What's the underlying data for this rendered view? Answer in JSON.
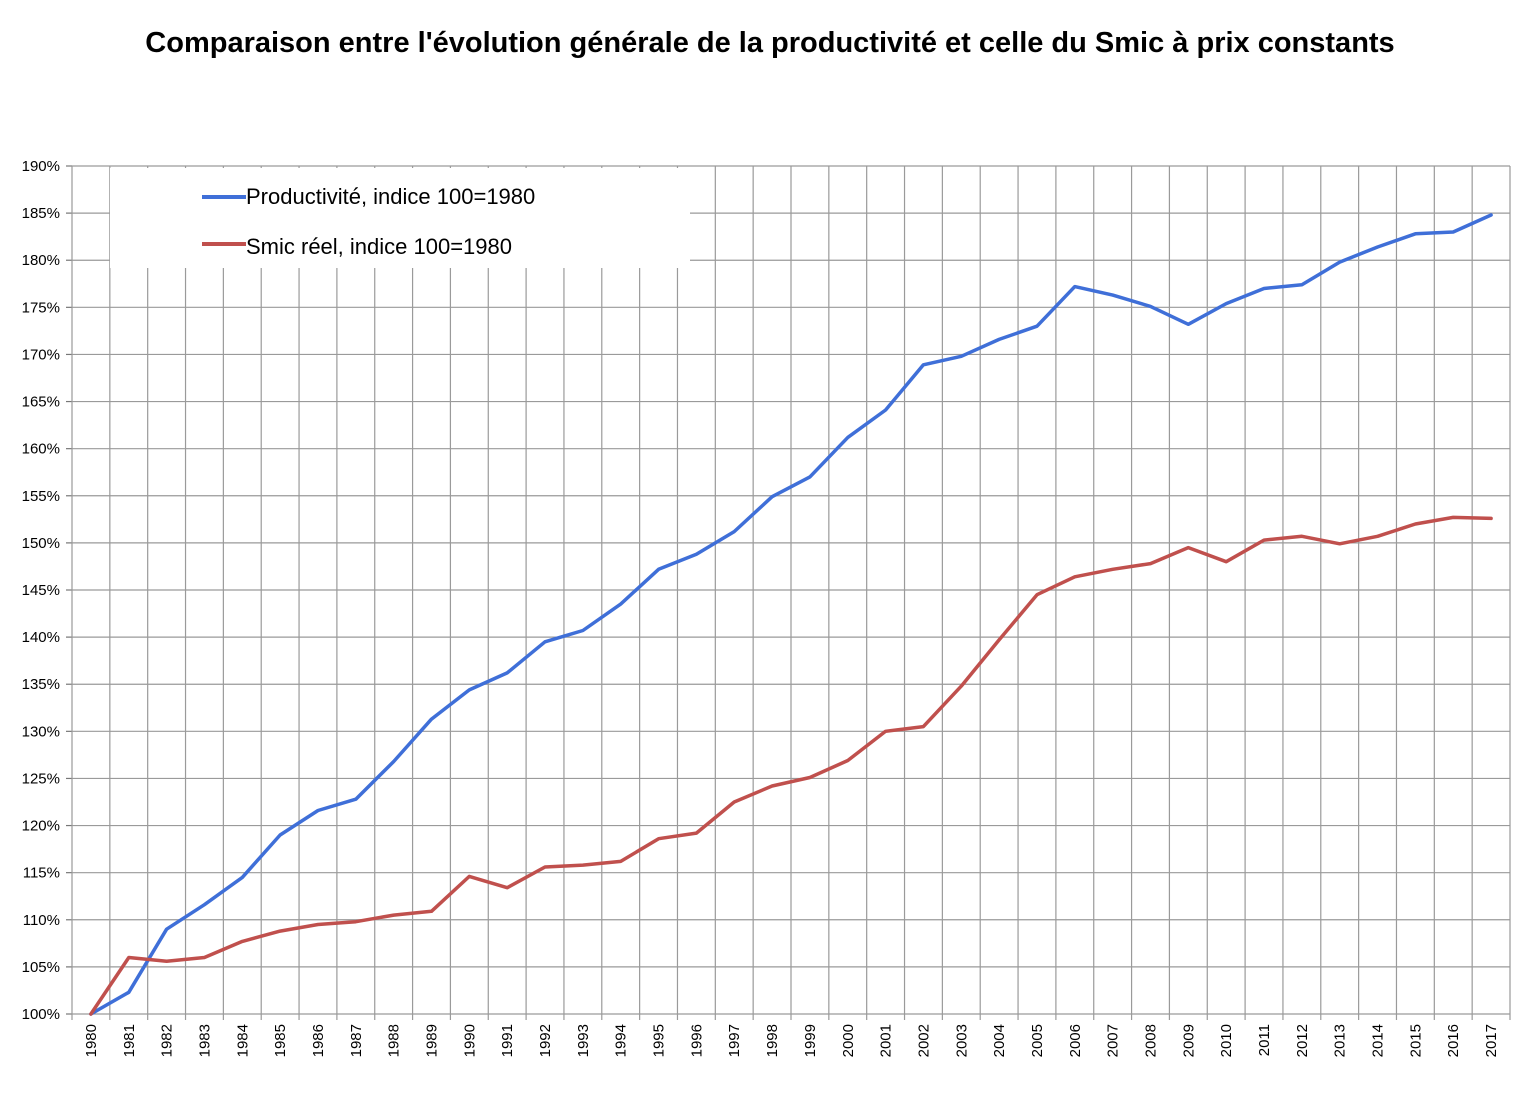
{
  "chart_data": {
    "type": "line",
    "title": "Comparaison entre l'évolution générale de la productivité et celle du Smic à prix constants",
    "x": [
      1980,
      1981,
      1982,
      1983,
      1984,
      1985,
      1986,
      1987,
      1988,
      1989,
      1990,
      1991,
      1992,
      1993,
      1994,
      1995,
      1996,
      1997,
      1998,
      1999,
      2000,
      2001,
      2002,
      2003,
      2004,
      2005,
      2006,
      2007,
      2008,
      2009,
      2010,
      2011,
      2012,
      2013,
      2014,
      2015,
      2016,
      2017
    ],
    "x_tick_labels": [
      "1980",
      "1981",
      "1982",
      "1983",
      "1984",
      "1985",
      "1986",
      "1987",
      "1988",
      "1989",
      "1990",
      "1991",
      "1992",
      "1993",
      "1994",
      "1995",
      "1996",
      "1997",
      "1998",
      "1999",
      "2000",
      "2001",
      "2002",
      "2003",
      "2004",
      "2005",
      "2006",
      "2007",
      "2008",
      "2009",
      "2010",
      "2011",
      "2012",
      "2013",
      "2014",
      "2015",
      "2016",
      "2017"
    ],
    "y_tick_labels": [
      "100%",
      "105%",
      "110%",
      "115%",
      "120%",
      "125%",
      "130%",
      "135%",
      "140%",
      "145%",
      "150%",
      "155%",
      "160%",
      "165%",
      "170%",
      "175%",
      "180%",
      "185%",
      "190%"
    ],
    "ylim": [
      100,
      190
    ],
    "ytick_step": 5,
    "grid": true,
    "legend_position": "top-left",
    "series": [
      {
        "name": "Productivité, indice 100=1980",
        "color": "#3f6fd8",
        "values": [
          100,
          102.3,
          109.0,
          111.6,
          114.5,
          119.0,
          121.6,
          122.8,
          126.8,
          131.3,
          134.4,
          136.2,
          139.5,
          140.7,
          143.5,
          147.2,
          148.8,
          151.2,
          154.9,
          157.0,
          161.2,
          164.1,
          168.9,
          169.8,
          171.6,
          173.0,
          177.2,
          176.3,
          175.1,
          173.2,
          175.4,
          177.0,
          177.4,
          179.8,
          181.4,
          182.8,
          183.0,
          184.8
        ]
      },
      {
        "name": "Smic réel, indice 100=1980",
        "color": "#c0504d",
        "values": [
          100,
          106.0,
          105.6,
          106.0,
          107.7,
          108.8,
          109.5,
          109.8,
          110.5,
          110.9,
          114.6,
          113.4,
          115.6,
          115.8,
          116.2,
          118.6,
          119.2,
          122.5,
          124.2,
          125.1,
          126.9,
          130.0,
          130.5,
          134.8,
          139.7,
          144.5,
          146.4,
          147.2,
          147.8,
          149.5,
          148.0,
          150.3,
          150.7,
          149.9,
          150.7,
          152.0,
          152.7,
          152.6
        ]
      }
    ]
  }
}
